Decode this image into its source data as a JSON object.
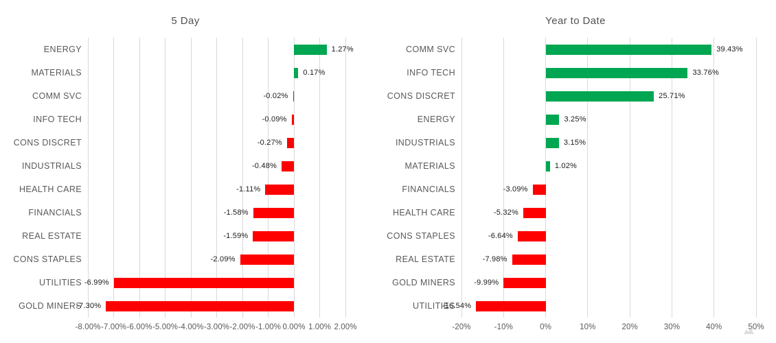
{
  "colors": {
    "positive": "#00A651",
    "negative": "#FF0000",
    "grid": "#D9D9D9",
    "category_label": "#595959",
    "axis_label": "#595959",
    "title": "#525252",
    "data_label": "#1A1A1A",
    "background": "#FFFFFF"
  },
  "chart_data": [
    {
      "type": "bar",
      "orientation": "horizontal",
      "title": "5 Day",
      "categories": [
        "ENERGY",
        "MATERIALS",
        "COMM SVC",
        "INFO TECH",
        "CONS DISCRET",
        "INDUSTRIALS",
        "HEALTH CARE",
        "FINANCIALS",
        "REAL ESTATE",
        "CONS STAPLES",
        "UTILITIES",
        "GOLD MINERS"
      ],
      "values": [
        1.27,
        0.17,
        -0.02,
        -0.09,
        -0.27,
        -0.48,
        -1.11,
        -1.58,
        -1.59,
        -2.09,
        -6.99,
        -7.3
      ],
      "data_labels": [
        "1.27%",
        "0.17%",
        "-0.02%",
        "-0.09%",
        "-0.27%",
        "-0.48%",
        "-1.11%",
        "-1.58%",
        "-1.59%",
        "-2.09%",
        "-6.99%",
        "-7.30%"
      ],
      "xlim": [
        -8,
        2
      ],
      "xticks": [
        -8,
        -7,
        -6,
        -5,
        -4,
        -3,
        -2,
        -1,
        0,
        1,
        2
      ],
      "tick_labels": [
        "-8.00%",
        "-7.00%",
        "-6.00%",
        "-5.00%",
        "-4.00%",
        "-3.00%",
        "-2.00%",
        "-1.00%",
        "0.00%",
        "1.00%",
        "2.00%"
      ],
      "grid": true,
      "legend": null
    },
    {
      "type": "bar",
      "orientation": "horizontal",
      "title": "Year to Date",
      "categories": [
        "COMM SVC",
        "INFO TECH",
        "CONS DISCRET",
        "ENERGY",
        "INDUSTRIALS",
        "MATERIALS",
        "FINANCIALS",
        "HEALTH CARE",
        "CONS STAPLES",
        "REAL ESTATE",
        "GOLD MINERS",
        "UTILITIES"
      ],
      "values": [
        39.43,
        33.76,
        25.71,
        3.25,
        3.15,
        1.02,
        -3.09,
        -5.32,
        -6.64,
        -7.98,
        -9.99,
        -16.54
      ],
      "data_labels": [
        "39.43%",
        "33.76%",
        "25.71%",
        "3.25%",
        "3.15%",
        "1.02%",
        "-3.09%",
        "-5.32%",
        "-6.64%",
        "-7.98%",
        "-9.99%",
        "-16.54%"
      ],
      "xlim": [
        -20,
        50
      ],
      "xticks": [
        -20,
        -10,
        0,
        10,
        20,
        30,
        40,
        50
      ],
      "tick_labels": [
        "-20%",
        "-10%",
        "0%",
        "10%",
        "20%",
        "30%",
        "40%",
        "50%"
      ],
      "grid": true,
      "legend": null
    }
  ]
}
